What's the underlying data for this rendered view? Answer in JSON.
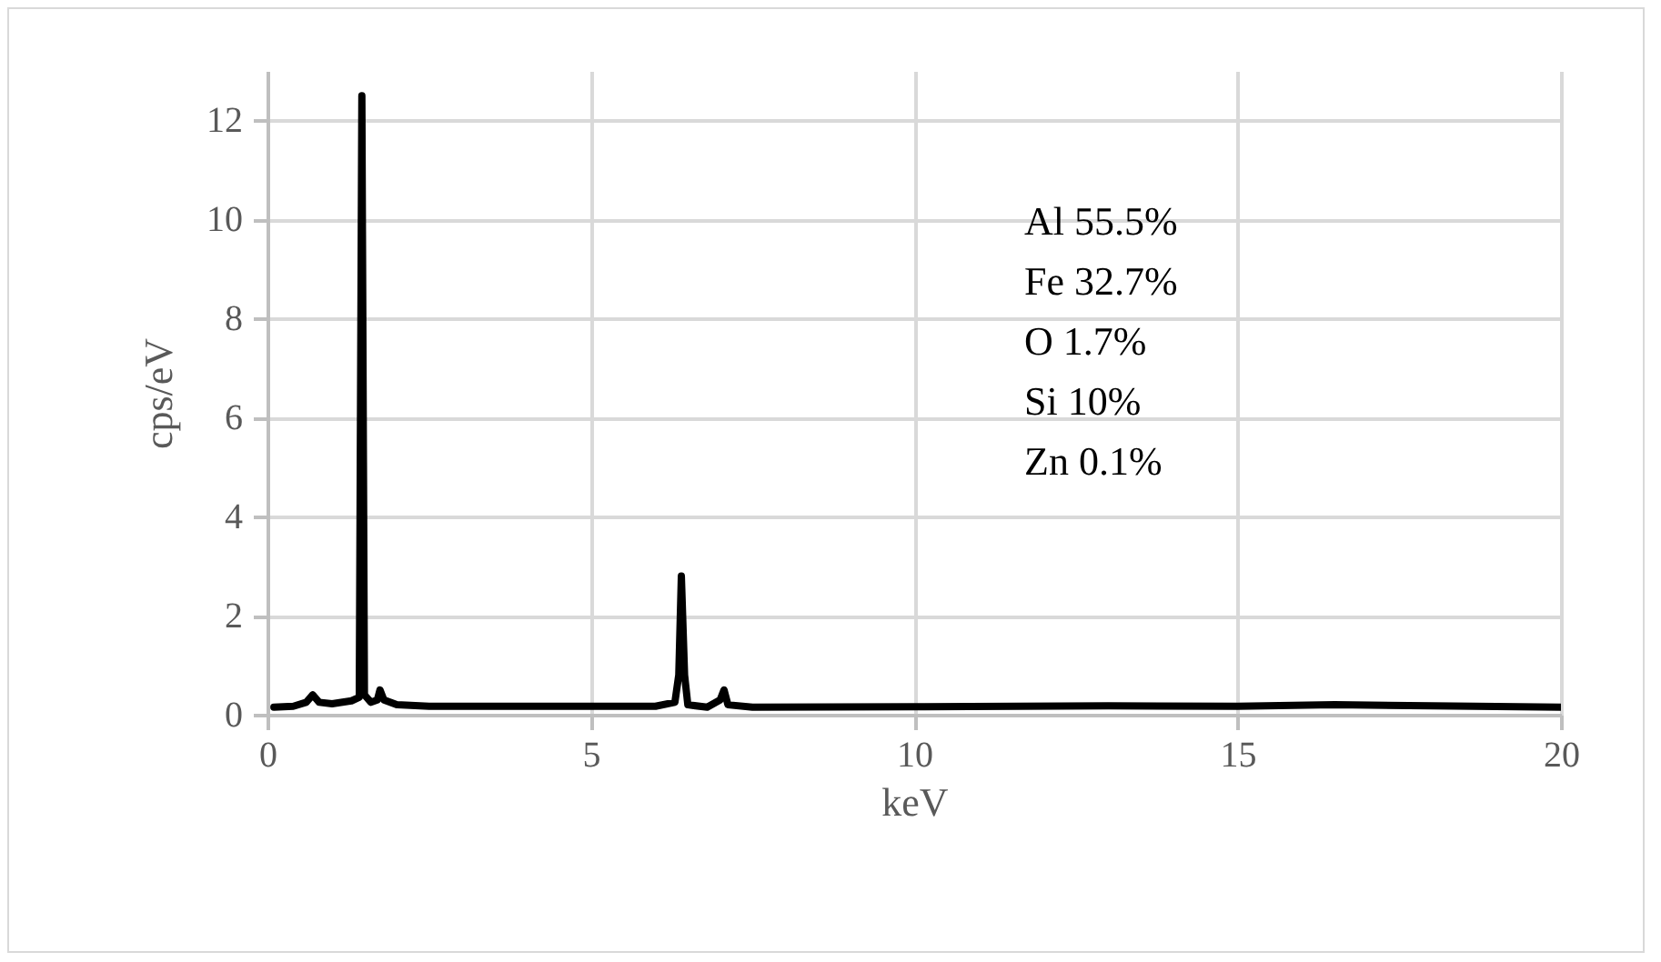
{
  "chart_data": {
    "type": "line",
    "xlabel": "keV",
    "ylabel": "cps/eV",
    "x": [
      0.1,
      0.4,
      0.6,
      0.7,
      0.8,
      1.0,
      1.3,
      1.42,
      1.46,
      1.5,
      1.6,
      1.7,
      1.74,
      1.8,
      2.0,
      2.5,
      4,
      6.0,
      6.3,
      6.36,
      6.4,
      6.45,
      6.5,
      6.8,
      7.0,
      7.06,
      7.12,
      7.5,
      10,
      13,
      15,
      16.5,
      18,
      20
    ],
    "series": [
      {
        "color": "#000000",
        "values": [
          0.15,
          0.17,
          0.25,
          0.4,
          0.25,
          0.22,
          0.28,
          0.35,
          12.5,
          0.4,
          0.25,
          0.3,
          0.5,
          0.3,
          0.2,
          0.17,
          0.17,
          0.17,
          0.25,
          0.8,
          2.8,
          0.8,
          0.2,
          0.15,
          0.3,
          0.5,
          0.2,
          0.15,
          0.16,
          0.18,
          0.17,
          0.2,
          0.18,
          0.15
        ]
      }
    ],
    "xlim": [
      0,
      20
    ],
    "xticks": [
      0,
      5,
      10,
      15,
      20
    ],
    "ylim": [
      0,
      13
    ],
    "yticks": [
      0,
      2,
      4,
      6,
      8,
      10,
      12
    ],
    "grid": true,
    "marker": "none",
    "line_style": "solid",
    "annotations": [
      "Al 55.5%",
      "Fe 32.7%",
      "O 1.7%",
      "Si 10%",
      "Zn 0.1%"
    ]
  }
}
